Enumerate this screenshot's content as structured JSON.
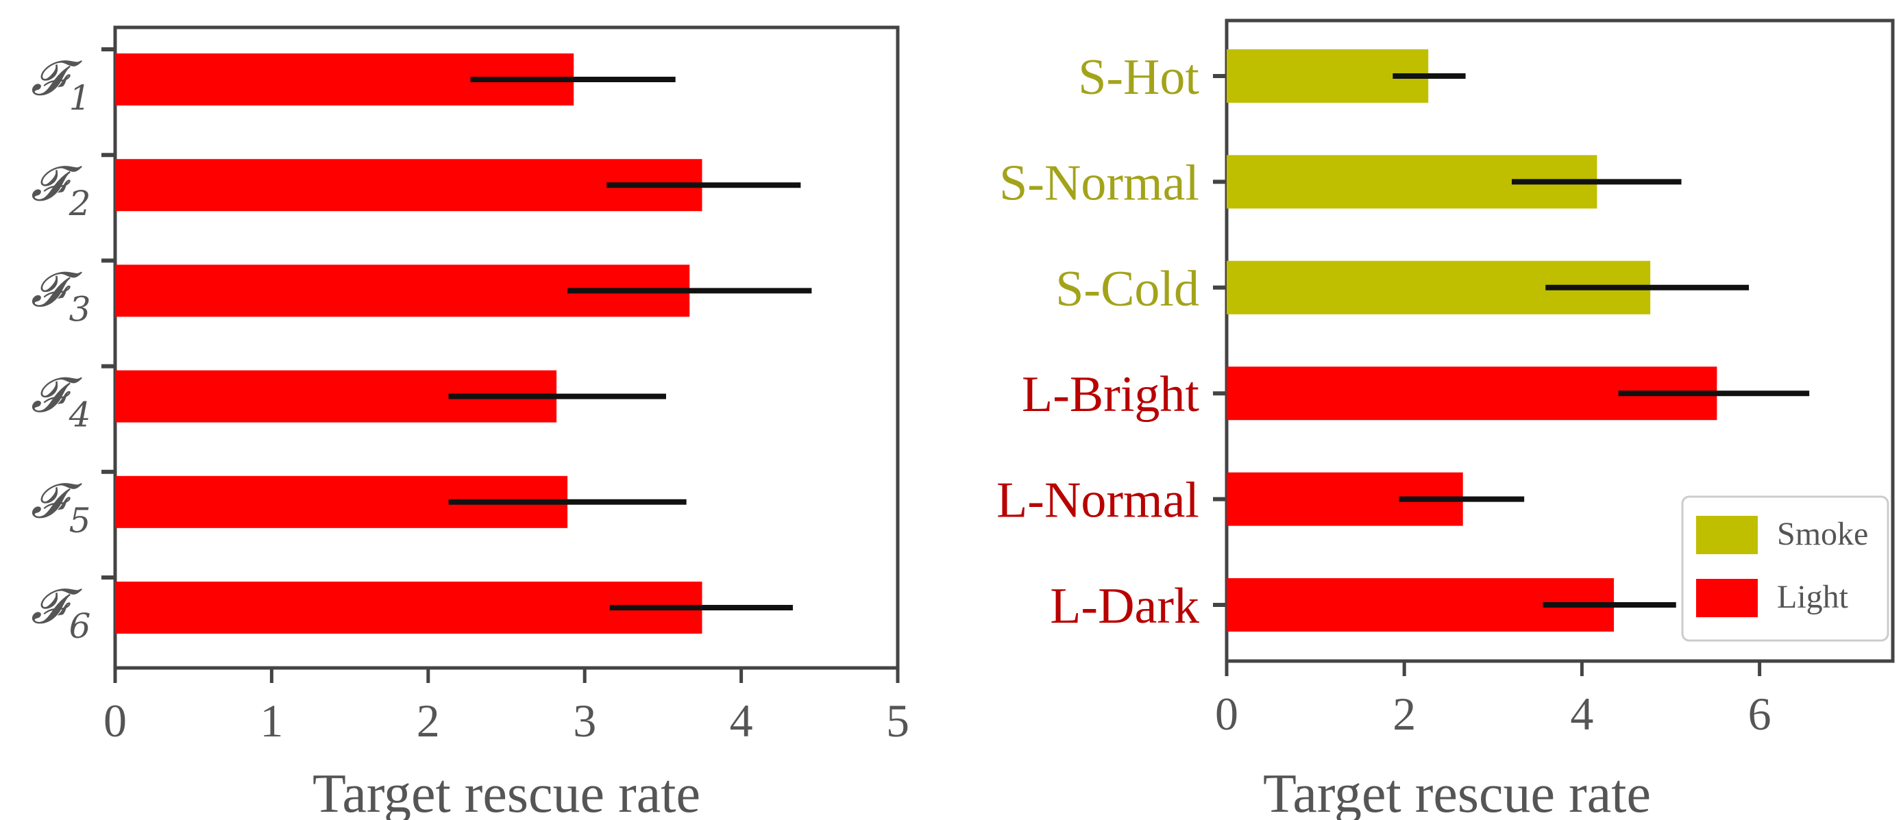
{
  "chart_data": [
    {
      "type": "bar",
      "orientation": "horizontal",
      "categories": [
        "𝓕1",
        "𝓕2",
        "𝓕3",
        "𝓕4",
        "𝓕5",
        "𝓕6"
      ],
      "category_symbols": [
        {
          "base": "𝓕",
          "sub": "1"
        },
        {
          "base": "𝓕",
          "sub": "2"
        },
        {
          "base": "𝓕",
          "sub": "3"
        },
        {
          "base": "𝓕",
          "sub": "4"
        },
        {
          "base": "𝓕",
          "sub": "5"
        },
        {
          "base": "𝓕",
          "sub": "6"
        }
      ],
      "values": [
        2.93,
        3.75,
        3.67,
        2.82,
        2.89,
        3.75
      ],
      "error_low": [
        2.27,
        3.14,
        2.89,
        2.13,
        2.13,
        3.16
      ],
      "error_high": [
        3.58,
        4.38,
        4.45,
        3.52,
        3.65,
        4.33
      ],
      "bar_color": "#ff0000",
      "xlabel": "Target rescue rate",
      "xlim": [
        0,
        5
      ],
      "xticks": [
        "0",
        "1",
        "2",
        "3",
        "4",
        "5"
      ],
      "grid": false
    },
    {
      "type": "bar",
      "orientation": "horizontal",
      "categories": [
        "S-Hot",
        "S-Normal",
        "S-Cold",
        "L-Bright",
        "L-Normal",
        "L-Dark"
      ],
      "category_groups": [
        "Smoke",
        "Smoke",
        "Smoke",
        "Light",
        "Light",
        "Light"
      ],
      "values": [
        2.27,
        4.17,
        4.77,
        5.52,
        2.66,
        4.36
      ],
      "error_low": [
        1.87,
        3.21,
        3.59,
        4.41,
        1.94,
        3.56
      ],
      "error_high": [
        2.69,
        5.12,
        5.88,
        6.56,
        3.35,
        5.06
      ],
      "xlabel": "Target rescue rate",
      "xlim": [
        0,
        7.5
      ],
      "xticks": [
        "0",
        "2",
        "4",
        "6"
      ],
      "legend": [
        {
          "name": "Smoke",
          "color": "#bfbf00"
        },
        {
          "name": "Light",
          "color": "#ff0000"
        }
      ],
      "legend_position": "bottom-right",
      "label_colors": {
        "Smoke": "#a3a31a",
        "Light": "#b80000"
      },
      "grid": false
    }
  ]
}
